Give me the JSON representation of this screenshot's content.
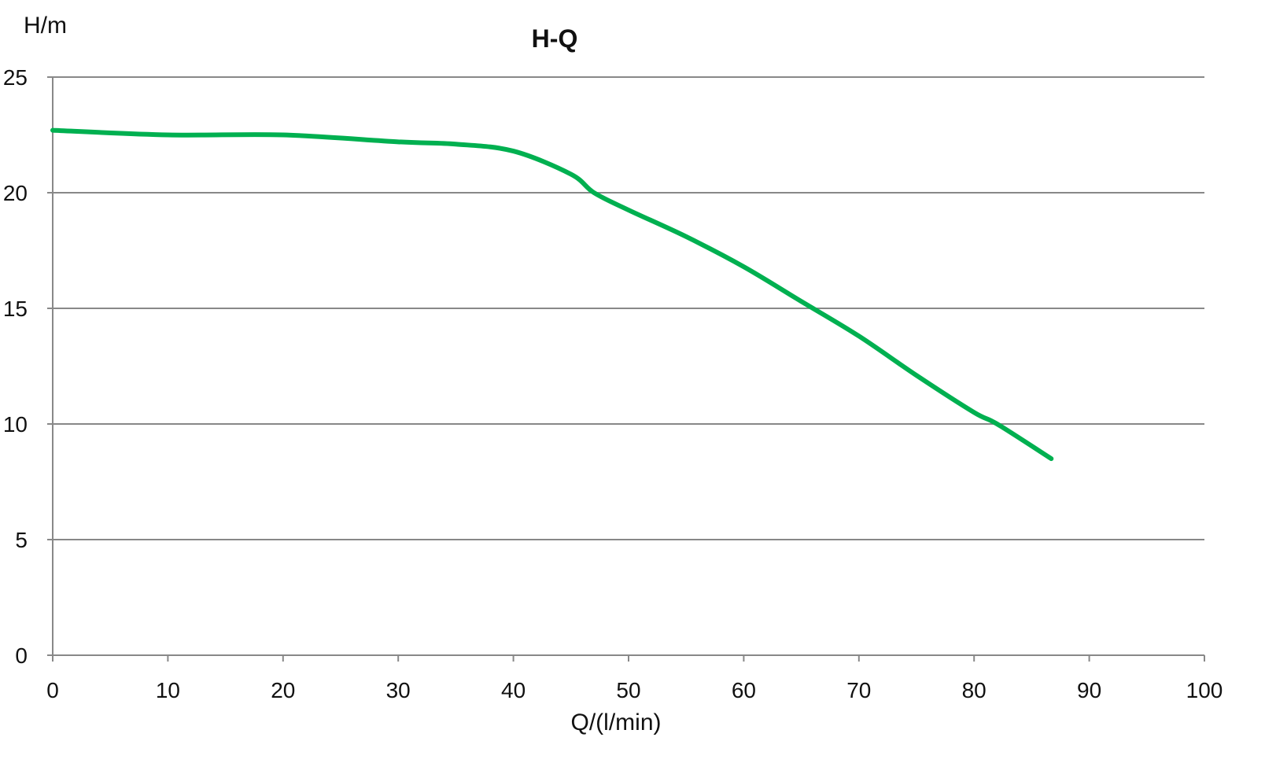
{
  "chart_data": {
    "type": "line",
    "title": "H-Q",
    "xlabel": "Q/(l/min)",
    "ylabel": "H/m",
    "xlim": [
      0,
      100
    ],
    "ylim": [
      0,
      25
    ],
    "xticks": [
      0,
      10,
      20,
      30,
      40,
      50,
      60,
      70,
      80,
      90,
      100
    ],
    "yticks": [
      0,
      5,
      10,
      15,
      20,
      25
    ],
    "grid": "horizontal",
    "legend": "none",
    "series": [
      {
        "name": "H-Q",
        "color": "#00b050",
        "x": [
          0,
          10,
          20,
          30,
          35,
          40,
          45,
          47,
          50,
          55,
          60,
          65,
          70,
          75,
          80,
          82,
          86.7
        ],
        "y": [
          22.7,
          22.5,
          22.5,
          22.2,
          22.1,
          21.8,
          20.8,
          20.0,
          19.25,
          18.1,
          16.8,
          15.3,
          13.8,
          12.1,
          10.5,
          10.0,
          8.5
        ]
      }
    ],
    "colors": {
      "axis": "#888888",
      "grid": "#888888"
    }
  }
}
